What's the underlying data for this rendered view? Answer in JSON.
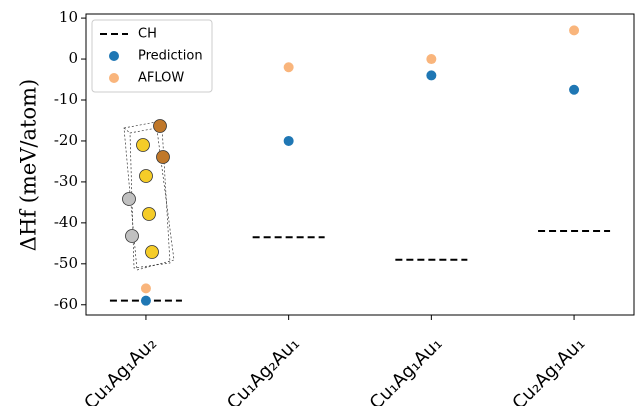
{
  "chart_data": {
    "type": "scatter",
    "y_label": "ΔHf (meV/atom)",
    "categories": [
      "Cu₁Ag₁Au₂",
      "Cu₁Ag₂Au₁",
      "Cu₁Ag₁Au₁",
      "Cu₂Ag₁Au₁"
    ],
    "series": [
      {
        "name": "CH",
        "color": "#000000",
        "style": "dash",
        "values": [
          -59,
          -43.5,
          -49,
          -42
        ]
      },
      {
        "name": "Prediction",
        "color": "#1f77b4",
        "style": "marker",
        "values": [
          -59,
          -20,
          -4,
          -7.5
        ]
      },
      {
        "name": "AFLOW",
        "color": "#f9b57c",
        "style": "marker",
        "values": [
          -56,
          -2,
          0,
          7
        ]
      }
    ],
    "ylim": [
      -62.5,
      11
    ],
    "yticks": [
      -60,
      -50,
      -40,
      -30,
      -20,
      -10,
      0,
      10
    ],
    "legend": "upper left"
  }
}
